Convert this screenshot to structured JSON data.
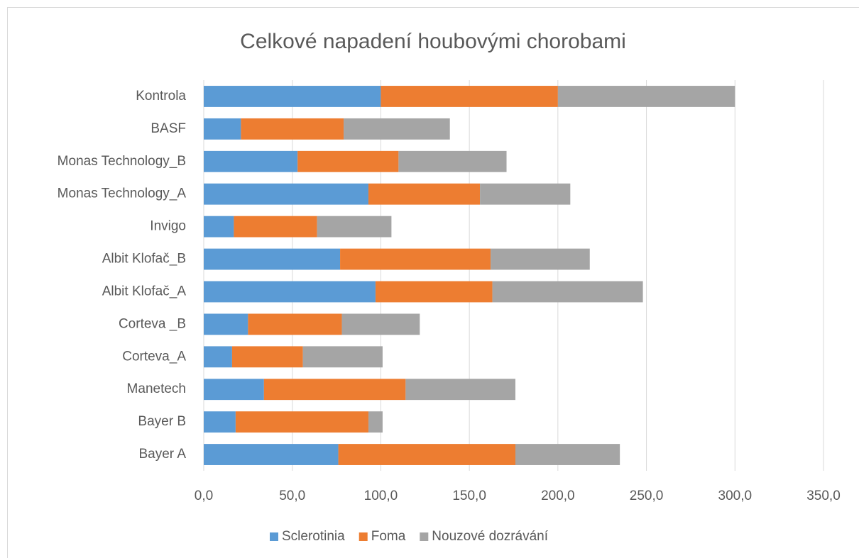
{
  "chart_data": {
    "type": "stacked_barh",
    "title": "Celkové napadení houbovými chorobami",
    "categories": [
      "Bayer A",
      "Bayer B",
      "Manetech",
      "Corteva_A",
      "Corteva _B",
      "Albit Klofač_A",
      "Albit Klofač_B",
      "Invigo ",
      "Monas Technology_A",
      "Monas Technology_B",
      "BASF",
      "Kontrola"
    ],
    "series": [
      {
        "name": "Sclerotinia",
        "color": "#5b9bd5",
        "values": [
          76,
          18,
          34,
          16,
          25,
          97,
          77,
          17,
          93,
          53,
          21,
          100
        ]
      },
      {
        "name": "Foma",
        "color": "#ed7d31",
        "values": [
          100,
          75,
          80,
          40,
          53,
          66,
          85,
          47,
          63,
          57,
          58,
          100
        ]
      },
      {
        "name": "Nouzové dozrávání",
        "color": "#a5a5a5",
        "values": [
          59,
          8,
          62,
          45,
          44,
          85,
          56,
          42,
          51,
          61,
          60,
          100
        ]
      }
    ],
    "xlim": [
      0,
      350
    ],
    "xticks": [
      {
        "value": 0,
        "label": "0,0"
      },
      {
        "value": 50,
        "label": "50,0"
      },
      {
        "value": 100,
        "label": "100,0"
      },
      {
        "value": 150,
        "label": "150,0"
      },
      {
        "value": 200,
        "label": "200,0"
      },
      {
        "value": 250,
        "label": "250,0"
      },
      {
        "value": 300,
        "label": "300,0"
      },
      {
        "value": 350,
        "label": "350,0"
      }
    ],
    "grid": true,
    "legend": "bottom"
  }
}
